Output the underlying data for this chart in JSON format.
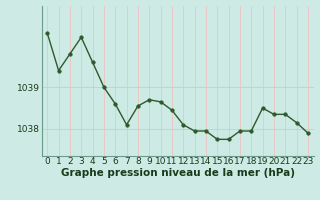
{
  "x": [
    0,
    1,
    2,
    3,
    4,
    5,
    6,
    7,
    8,
    9,
    10,
    11,
    12,
    13,
    14,
    15,
    16,
    17,
    18,
    19,
    20,
    21,
    22,
    23
  ],
  "y": [
    1040.3,
    1039.4,
    1039.8,
    1040.2,
    1039.6,
    1039.0,
    1038.6,
    1038.1,
    1038.55,
    1038.7,
    1038.65,
    1038.45,
    1038.1,
    1037.95,
    1037.95,
    1037.75,
    1037.75,
    1037.95,
    1037.95,
    1038.5,
    1038.35,
    1038.35,
    1038.15,
    1037.9
  ],
  "bg_color": "#ceeae4",
  "line_color": "#2d5a2d",
  "marker_color": "#2d5a2d",
  "grid_color_v": "#e8c8c8",
  "grid_color_h": "#b8d8d0",
  "axis_label_color": "#1a3a1a",
  "title": "Graphe pression niveau de la mer (hPa)",
  "ylabel_ticks": [
    1038,
    1039
  ],
  "xlim": [
    -0.5,
    23.5
  ],
  "ylim": [
    1037.35,
    1040.95
  ],
  "xtick_labels": [
    "0",
    "1",
    "2",
    "3",
    "4",
    "5",
    "6",
    "7",
    "8",
    "9",
    "10",
    "11",
    "12",
    "13",
    "14",
    "15",
    "16",
    "17",
    "18",
    "19",
    "20",
    "21",
    "22",
    "23"
  ],
  "title_fontsize": 7.5,
  "tick_fontsize": 6.5,
  "line_width": 1.0,
  "marker_size": 2.5
}
